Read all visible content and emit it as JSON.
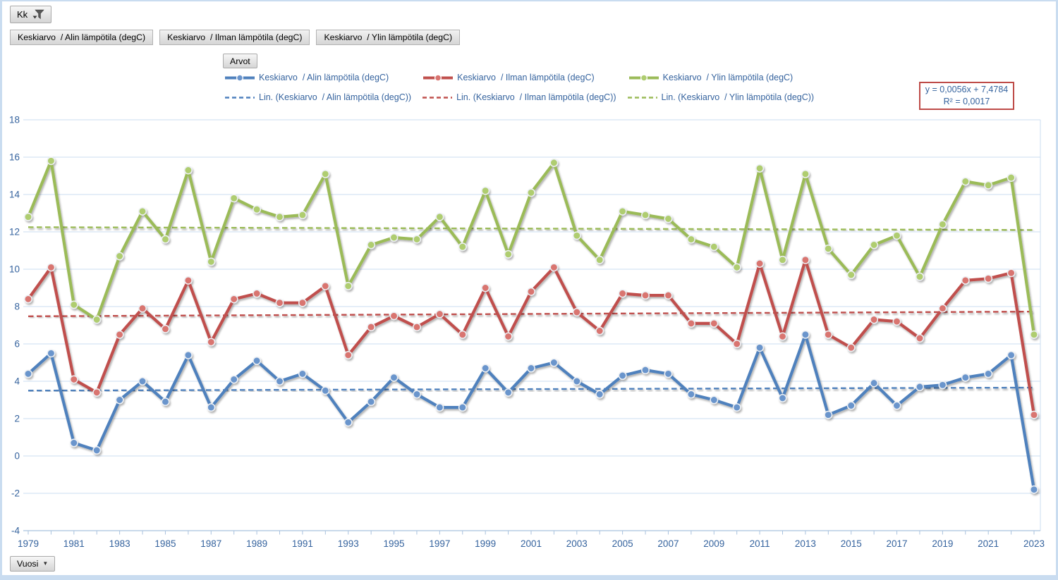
{
  "pivot": {
    "filter_button_label": "Kk",
    "field_buttons": [
      "Keskiarvo  / Alin lämpötila (degC)",
      "Keskiarvo  / Ilman lämpötila (degC)",
      "Keskiarvo  / Ylin lämpötila (degC)"
    ],
    "values_button_label": "Arvot",
    "axis_button_label": "Vuosi"
  },
  "legend": {
    "series_labels": [
      "Keskiarvo  / Alin lämpötila (degC)",
      "Keskiarvo  / Ilman lämpötila (degC)",
      "Keskiarvo  / Ylin lämpötila (degC)"
    ],
    "trend_labels": [
      "Lin. (Keskiarvo  / Alin lämpötila (degC))",
      "Lin. (Keskiarvo  / Ilman lämpötila (degC))",
      "Lin. (Keskiarvo  / Ylin lämpötila (degC))"
    ],
    "text_color": "#35639E"
  },
  "equation_box": {
    "line1": "y = 0,0056x + 7,4784",
    "line2": "R² = 0,0017",
    "border_color": "#BE4B48"
  },
  "chart_data": {
    "type": "line",
    "x": [
      1979,
      1980,
      1981,
      1982,
      1983,
      1984,
      1985,
      1986,
      1987,
      1988,
      1989,
      1990,
      1991,
      1992,
      1993,
      1994,
      1995,
      1996,
      1997,
      1998,
      1999,
      2000,
      2001,
      2002,
      2003,
      2004,
      2005,
      2006,
      2007,
      2008,
      2009,
      2010,
      2011,
      2012,
      2013,
      2014,
      2015,
      2016,
      2017,
      2018,
      2019,
      2020,
      2021,
      2022,
      2023
    ],
    "x_tick_labels": [
      "1979",
      "1981",
      "1983",
      "1985",
      "1987",
      "1989",
      "1991",
      "1993",
      "1995",
      "1997",
      "1999",
      "2001",
      "2003",
      "2005",
      "2007",
      "2009",
      "2011",
      "2013",
      "2015",
      "2017",
      "2019",
      "2021",
      "2023"
    ],
    "xlabel": "Vuosi",
    "ylabel": "",
    "ylim": [
      -4,
      18
    ],
    "y_ticks": [
      18,
      16,
      14,
      12,
      10,
      8,
      6,
      4,
      2,
      0,
      -2,
      -4
    ],
    "grid": true,
    "legend_position": "top",
    "series": [
      {
        "name": "Keskiarvo  / Alin lämpötila (degC)",
        "color": "#4F81BD",
        "marker_fill": "#6B95CC",
        "values": [
          4.4,
          5.5,
          0.7,
          0.3,
          3.0,
          4.0,
          2.9,
          5.4,
          2.6,
          4.1,
          5.1,
          4.0,
          4.4,
          3.5,
          1.8,
          2.9,
          4.2,
          3.3,
          2.6,
          2.6,
          4.7,
          3.4,
          4.7,
          5.0,
          4.0,
          3.3,
          4.3,
          4.6,
          4.4,
          3.3,
          3.0,
          2.6,
          5.8,
          3.1,
          6.5,
          2.2,
          2.7,
          3.9,
          2.7,
          3.7,
          3.8,
          4.2,
          4.4,
          5.4,
          -1.8
        ]
      },
      {
        "name": "Keskiarvo  / Ilman lämpötila (degC)",
        "color": "#C0504D",
        "marker_fill": "#D97470",
        "values": [
          8.4,
          10.1,
          4.1,
          3.4,
          6.5,
          7.9,
          6.8,
          9.4,
          6.1,
          8.4,
          8.7,
          8.2,
          8.2,
          9.1,
          5.4,
          6.9,
          7.5,
          6.9,
          7.6,
          6.5,
          9.0,
          6.4,
          8.8,
          10.1,
          7.7,
          6.7,
          8.7,
          8.6,
          8.6,
          7.1,
          7.1,
          6.0,
          10.3,
          6.4,
          10.5,
          6.5,
          5.8,
          7.3,
          7.2,
          6.3,
          7.9,
          9.4,
          9.5,
          9.8,
          2.2
        ]
      },
      {
        "name": "Keskiarvo  / Ylin lämpötila (degC)",
        "color": "#9BBB59",
        "marker_fill": "#AFCD70",
        "values": [
          12.8,
          15.8,
          8.1,
          7.3,
          10.7,
          13.1,
          11.6,
          15.3,
          10.4,
          13.8,
          13.2,
          12.8,
          12.9,
          15.1,
          9.1,
          11.3,
          11.7,
          11.6,
          12.8,
          11.2,
          14.2,
          10.8,
          14.1,
          15.7,
          11.8,
          10.5,
          13.1,
          12.9,
          12.7,
          11.6,
          11.2,
          10.1,
          15.4,
          10.5,
          15.1,
          11.1,
          9.7,
          11.3,
          11.8,
          9.6,
          12.4,
          14.7,
          14.5,
          14.9,
          6.5
        ]
      }
    ],
    "trendlines": [
      {
        "name": "Lin. (Keskiarvo  / Alin lämpötila (degC))",
        "color": "#4F81BD",
        "start": 3.5,
        "end": 3.66
      },
      {
        "name": "Lin. (Keskiarvo  / Ilman lämpötila (degC))",
        "color": "#C0504D",
        "start": 7.48,
        "end": 7.73
      },
      {
        "name": "Lin. (Keskiarvo  / Ylin lämpötila (degC))",
        "color": "#9BBB59",
        "start": 12.25,
        "end": 12.1
      }
    ]
  },
  "style": {
    "gridline_color": "#CBDDF1",
    "axis_line_color": "#A9C2DE",
    "axis_text_color": "#35639E"
  }
}
